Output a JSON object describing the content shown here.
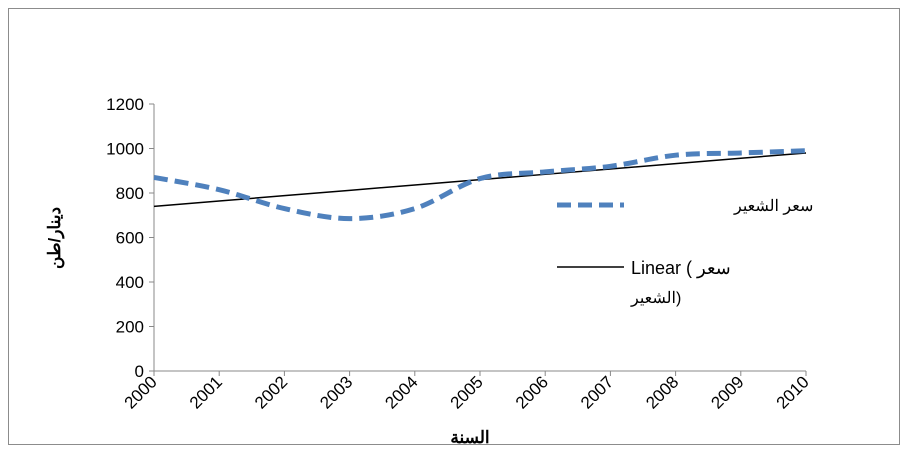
{
  "chart_data": {
    "type": "line",
    "title": "",
    "xlabel": "السنة",
    "ylabel": "دينار/طن",
    "categories": [
      "2000",
      "2001",
      "2002",
      "2003",
      "2004",
      "2005",
      "2006",
      "2007",
      "2008",
      "2009",
      "2010"
    ],
    "ylim": [
      0,
      1200
    ],
    "yticks": [
      0,
      200,
      400,
      600,
      800,
      1000,
      1200
    ],
    "ytick_labels": [
      "0",
      "200",
      "400",
      "600",
      "800",
      "1000",
      "1200"
    ],
    "grid": false,
    "legend_position": "right",
    "series": [
      {
        "name": "سعر الشعير",
        "style": "dashed",
        "color": "#4F81BD",
        "values": [
          870,
          815,
          730,
          685,
          730,
          865,
          895,
          920,
          970,
          980,
          990
        ]
      },
      {
        "name_line1": "Linear ( سعر",
        "name_line2": "الشعير)",
        "style": "solid",
        "color": "#000000",
        "values": [
          740,
          764,
          788,
          812,
          836,
          860,
          884,
          908,
          932,
          956,
          980
        ]
      }
    ]
  }
}
